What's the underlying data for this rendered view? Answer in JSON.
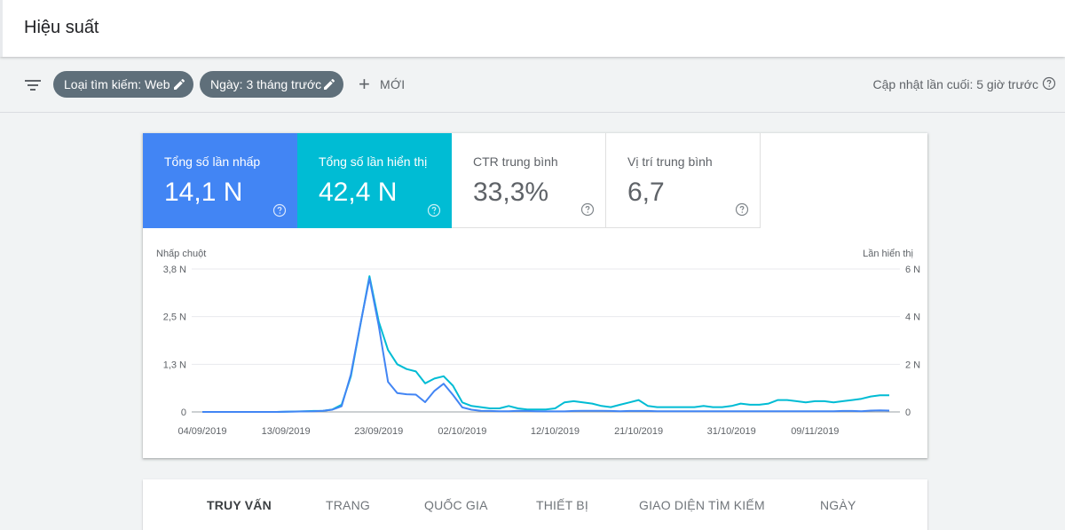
{
  "header": {
    "title": "Hiệu suất"
  },
  "filters": {
    "chips": [
      {
        "label": "Loại tìm kiếm: Web"
      },
      {
        "label": "Ngày: 3 tháng trước"
      }
    ],
    "new_label": "MỚI",
    "last_updated": "Cập nhật lần cuối: 5 giờ trước"
  },
  "metrics": [
    {
      "label": "Tổng số lần nhấp",
      "value": "14,1 N",
      "color": "#4285f4",
      "selected": true
    },
    {
      "label": "Tổng số lần hiển thị",
      "value": "42,4 N",
      "color": "#00bcd4",
      "selected": true
    },
    {
      "label": "CTR trung bình",
      "value": "33,3%",
      "selected": false
    },
    {
      "label": "Vị trí trung bình",
      "value": "6,7",
      "selected": false
    }
  ],
  "chart_data": {
    "type": "line",
    "ylabel": "Nhấp chuột",
    "y2label": "Lần hiển thị",
    "y_ticks": [
      "0",
      "1,3 N",
      "2,5 N",
      "3,8 N"
    ],
    "y_tick_values": [
      0,
      1267,
      2533,
      3800
    ],
    "y2_ticks": [
      "0",
      "2 N",
      "4 N",
      "6 N"
    ],
    "y2_tick_values": [
      0,
      2000,
      4000,
      6000
    ],
    "ylim": [
      0,
      3800
    ],
    "y2lim": [
      0,
      6000
    ],
    "x_tick_labels": [
      "04/09/2019",
      "13/09/2019",
      "23/09/2019",
      "02/10/2019",
      "12/10/2019",
      "21/10/2019",
      "31/10/2019",
      "09/11/2019"
    ],
    "x_tick_index": [
      0,
      9,
      19,
      28,
      38,
      47,
      57,
      66
    ],
    "grid": true,
    "series": [
      {
        "name": "Tổng số lần nhấp",
        "axis": "left",
        "color": "#4285f4",
        "values": [
          0,
          0,
          0,
          0,
          0,
          0,
          0,
          0,
          0,
          5,
          10,
          15,
          20,
          30,
          60,
          150,
          1000,
          2300,
          3550,
          2300,
          800,
          500,
          470,
          460,
          260,
          560,
          750,
          450,
          120,
          60,
          30,
          25,
          20,
          20,
          30,
          25,
          20,
          15,
          15,
          15,
          25,
          30,
          30,
          30,
          25,
          20,
          25,
          25,
          25,
          20,
          20,
          20,
          20,
          20,
          20,
          20,
          20,
          20,
          20,
          20,
          20,
          20,
          20,
          20,
          20,
          20,
          20,
          20,
          20,
          25,
          25,
          20,
          35,
          40,
          35
        ]
      },
      {
        "name": "Tổng số lần hiển thị",
        "axis": "right",
        "color": "#00bcd4",
        "values": [
          0,
          0,
          0,
          0,
          0,
          0,
          0,
          0,
          0,
          10,
          20,
          30,
          40,
          50,
          100,
          300,
          1500,
          3600,
          5700,
          3800,
          2600,
          2000,
          1800,
          1700,
          1200,
          1400,
          1500,
          1100,
          400,
          250,
          200,
          150,
          150,
          250,
          150,
          100,
          100,
          100,
          150,
          400,
          450,
          400,
          350,
          250,
          200,
          300,
          400,
          500,
          250,
          200,
          200,
          200,
          200,
          200,
          250,
          200,
          200,
          250,
          350,
          300,
          300,
          350,
          500,
          500,
          450,
          400,
          450,
          450,
          400,
          450,
          500,
          550,
          650,
          700,
          700
        ]
      }
    ]
  },
  "tabs": {
    "items": [
      {
        "label": "TRUY VẤN",
        "active": true
      },
      {
        "label": "TRANG",
        "active": false
      },
      {
        "label": "QUỐC GIA",
        "active": false
      },
      {
        "label": "THIẾT BỊ",
        "active": false
      },
      {
        "label": "GIAO DIỆN TÌM KIẾM",
        "active": false
      },
      {
        "label": "NGÀY",
        "active": false
      }
    ]
  }
}
